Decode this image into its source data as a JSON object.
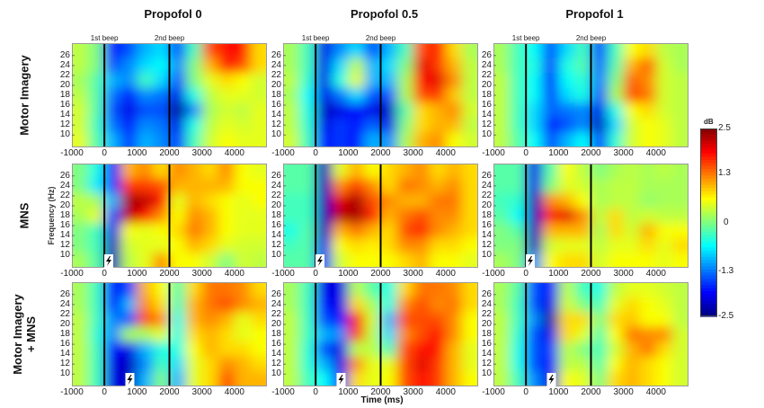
{
  "chart_data": {
    "type": "heatmap",
    "xlabel": "Time (ms)",
    "ylabel": "Frequency (Hz)",
    "x_ticks": [
      "-1000",
      "0",
      "1000",
      "2000",
      "3000",
      "4000"
    ],
    "y_ticks": [
      "26",
      "24",
      "22",
      "20",
      "18",
      "16",
      "14",
      "12",
      "10"
    ],
    "xlim": [
      -1000,
      5000
    ],
    "ylim": [
      7.5,
      28.5
    ],
    "event_labels": {
      "first": "1st beep",
      "second": "2nd beep"
    },
    "event_times": [
      0,
      2000
    ],
    "time_bin_centers": [
      -750,
      -250,
      250,
      750,
      1250,
      1750,
      2250,
      2750,
      3250,
      3750,
      4250,
      4750
    ],
    "freq_bin_centers": [
      27,
      24,
      21,
      18,
      15,
      12,
      9
    ],
    "columns": [
      "Propofol 0",
      "Propofol 0.5",
      "Propofol 1"
    ],
    "rows": [
      {
        "label": [
          "Motor Imagery"
        ],
        "stim_time": null
      },
      {
        "label": [
          "MNS"
        ],
        "stim_time": 50
      },
      {
        "label": [
          "Motor Imagery",
          "+ MNS"
        ],
        "stim_time": 700
      }
    ],
    "colorbar": {
      "label": "dB",
      "range": [
        -2.5,
        2.5
      ],
      "ticks": [
        "2.5",
        "1.3",
        "0",
        "-1.3",
        "-2.5"
      ],
      "tick_values": [
        2.5,
        1.3,
        0,
        -1.3,
        -2.5
      ],
      "colormap": "jet"
    },
    "panels": [
      [
        [
          [
            0.3,
            0,
            -1.8,
            -1.5,
            -1,
            -0.8,
            -1.5,
            -0.3,
            1.5,
            1.8,
            1.8,
            0.8
          ],
          [
            0.3,
            0,
            -1.5,
            -1.2,
            -0.8,
            -0.6,
            -1.2,
            0,
            1,
            1.8,
            1.5,
            0.8
          ],
          [
            0.2,
            -0.2,
            -1,
            -1.2,
            -0.3,
            -0.8,
            -1.5,
            0,
            0.5,
            0.8,
            0.6,
            0.4
          ],
          [
            0.3,
            -0.2,
            -1.3,
            -1.8,
            -1.2,
            -1.3,
            -2,
            -0.5,
            0.3,
            0.5,
            0.5,
            0.4
          ],
          [
            0.4,
            -0.2,
            -1.5,
            -2,
            -1.5,
            -1.5,
            -2.4,
            -1.2,
            0.2,
            0.4,
            0.3,
            0.5
          ],
          [
            0.4,
            -0.3,
            -1.3,
            -1.8,
            -1.2,
            -1.3,
            -2,
            -0.5,
            0.3,
            0.5,
            0.4,
            0.5
          ],
          [
            0.5,
            -0.2,
            -1,
            -1.6,
            -1,
            -1.2,
            -1.6,
            -0.3,
            0.4,
            0.6,
            0.5,
            0.5
          ]
        ],
        [
          [
            0.2,
            -0.3,
            -2,
            -1.2,
            -0.8,
            -1.5,
            -1,
            -0.3,
            1.5,
            1.8,
            0.8,
            0.2
          ],
          [
            0.2,
            -0.3,
            -2,
            -0.8,
            0.3,
            -1,
            -0.8,
            0,
            2,
            1.6,
            1,
            0.3
          ],
          [
            0.3,
            -0.4,
            -2,
            -0.5,
            0.5,
            -1,
            -1,
            0.2,
            1.8,
            2,
            1.2,
            0.3
          ],
          [
            0.2,
            -0.6,
            -2,
            -1.3,
            -0.8,
            -1.5,
            -1.5,
            0.2,
            1.5,
            1.6,
            0.9,
            0.3
          ],
          [
            0.3,
            -0.5,
            -2.2,
            -2,
            -1.8,
            -2,
            -2.2,
            -0.2,
            0.8,
            1,
            1.2,
            0.4
          ],
          [
            0.3,
            -0.4,
            -2,
            -1.6,
            -1.8,
            -1.4,
            -2,
            0,
            0.8,
            1,
            1,
            0.3
          ],
          [
            0.4,
            -0.3,
            -1.8,
            -1.6,
            -1.8,
            -1,
            -1.2,
            0.2,
            1,
            1.2,
            0.6,
            0.4
          ]
        ],
        [
          [
            0.2,
            -0.3,
            -0.6,
            -1.5,
            -0.8,
            -0.3,
            -1.6,
            -0.3,
            0.6,
            0.8,
            0.3,
            0.2
          ],
          [
            0.2,
            -0.3,
            -0.5,
            -1.6,
            -0.5,
            -0.2,
            -1.4,
            -0.2,
            1,
            1.4,
            0.4,
            0.2
          ],
          [
            0.3,
            -0.3,
            -0.6,
            -1.8,
            -0.6,
            -0.4,
            -1.3,
            0,
            1.4,
            1.2,
            0.4,
            0.3
          ],
          [
            0.3,
            -0.3,
            -0.6,
            -1.6,
            -0.8,
            -0.5,
            -1.5,
            0.2,
            1.5,
            1.3,
            0.4,
            0.3
          ],
          [
            0.3,
            -0.3,
            -0.8,
            -1.4,
            -1.3,
            -1.2,
            -2,
            -0.5,
            0.6,
            0.8,
            0.4,
            0.3
          ],
          [
            0.3,
            -0.3,
            -0.8,
            -1.8,
            -1.5,
            -1.2,
            -2.2,
            -0.8,
            0.4,
            0.6,
            0.5,
            0.3
          ],
          [
            0.3,
            -0.2,
            -0.6,
            -1.5,
            -1,
            -0.6,
            -1.6,
            -0.4,
            0.4,
            0.6,
            0.5,
            0.3
          ]
        ]
      ],
      [
        [
          [
            0,
            -0.5,
            -1.8,
            1,
            1.2,
            0.8,
            1.2,
            1,
            0.8,
            1.2,
            0.6,
            0.5
          ],
          [
            0,
            -0.7,
            -1.6,
            1.6,
            1.6,
            1.5,
            1,
            1,
            1,
            1,
            0.6,
            0.6
          ],
          [
            0.3,
            0.2,
            -1,
            2.3,
            2.2,
            1.8,
            0.5,
            1,
            0.8,
            0.6,
            0.5,
            0.6
          ],
          [
            0.2,
            0.5,
            -1.5,
            2.2,
            1.8,
            1.2,
            0.6,
            1.2,
            1,
            0.6,
            0.5,
            0.5
          ],
          [
            0,
            -0.3,
            -2,
            0.6,
            0.5,
            0.6,
            0.8,
            1.3,
            1,
            0.6,
            0.5,
            0.5
          ],
          [
            0,
            -0.3,
            -2.2,
            0.4,
            0.5,
            0.5,
            0.6,
            1,
            0.8,
            0.5,
            0.4,
            0.4
          ],
          [
            0.2,
            -0.2,
            -2.2,
            0.3,
            0.5,
            1.2,
            0.6,
            0.6,
            0.4,
            0,
            0.4,
            0.3
          ]
        ],
        [
          [
            -0.2,
            -0.2,
            -2.2,
            0.5,
            1,
            0.6,
            0.8,
            1,
            1.2,
            0.8,
            1,
            0.8
          ],
          [
            -0.2,
            -0.2,
            -2.2,
            1.2,
            1.6,
            1.2,
            0.8,
            1.3,
            1.2,
            1,
            1.2,
            0.8
          ],
          [
            -0.3,
            -0.3,
            -2.2,
            2,
            2.3,
            1.5,
            1.2,
            1,
            1,
            1.3,
            1.3,
            0.8
          ],
          [
            -0.3,
            -0.3,
            -2.2,
            2.2,
            2.3,
            1.7,
            1,
            1.3,
            1.5,
            1.2,
            1.2,
            0.8
          ],
          [
            -0.5,
            -0.2,
            -2.2,
            1,
            1.3,
            1,
            0.8,
            1.5,
            1.7,
            1.2,
            1,
            0.8
          ],
          [
            -0.3,
            -0.2,
            -2,
            0.6,
            0.8,
            0.7,
            0.8,
            1.2,
            1.2,
            0.8,
            0.8,
            0.6
          ],
          [
            -0.2,
            -0.2,
            -1.6,
            0.4,
            0.6,
            0.6,
            0.6,
            0.8,
            1,
            0.6,
            0.6,
            0.5
          ]
        ],
        [
          [
            -0.2,
            -0.2,
            -2,
            -0.2,
            0.6,
            0.3,
            0,
            0.2,
            0.3,
            0.2,
            0.3,
            0.2
          ],
          [
            -0.2,
            -0.2,
            -2,
            0,
            0.5,
            0.4,
            0.2,
            0.3,
            0.3,
            0.2,
            0.2,
            0.2
          ],
          [
            -0.3,
            -0.4,
            -2.2,
            1.2,
            1,
            0.6,
            0.2,
            0.3,
            0.3,
            0.1,
            0.2,
            0.2
          ],
          [
            -0.2,
            -0.6,
            -2.2,
            1.8,
            2,
            1.2,
            0.3,
            0.8,
            0.3,
            0.4,
            0.3,
            0.3
          ],
          [
            0,
            -0.2,
            -2.2,
            1,
            1,
            1,
            0.2,
            0.8,
            0.4,
            1,
            0.6,
            0.6
          ],
          [
            0,
            0,
            -2.2,
            0.4,
            0.5,
            0.5,
            0.3,
            0.5,
            0.5,
            0.8,
            0.5,
            0.8
          ],
          [
            0.2,
            0,
            -1.2,
            0.6,
            0.8,
            0.8,
            0.4,
            0.6,
            0.6,
            0.6,
            0.5,
            0.6
          ]
        ]
      ],
      [
        [
          [
            0.2,
            -0.3,
            -1.8,
            -1.5,
            1,
            0.6,
            -0.2,
            0.8,
            1.3,
            1.3,
            1.2,
            0.8
          ],
          [
            0.2,
            -0.3,
            -1.8,
            -1,
            1.2,
            0.8,
            -0.3,
            1,
            1.3,
            1.5,
            1.2,
            1
          ],
          [
            0.3,
            -0.3,
            -1.2,
            -1.5,
            1.5,
            1.2,
            -0.5,
            1,
            1.2,
            1,
            0.5,
            0.8
          ],
          [
            0.3,
            -0.4,
            -1.2,
            0.2,
            0.2,
            0.5,
            -0.5,
            0.8,
            1,
            0.8,
            0.5,
            0.6
          ],
          [
            0.3,
            -0.3,
            -1.8,
            -2,
            -1,
            -0.5,
            -0.5,
            0.6,
            1,
            0.8,
            0.8,
            0.6
          ],
          [
            0.3,
            -0.3,
            -2,
            -2.2,
            -1.2,
            -0.3,
            -0.8,
            0.5,
            0.8,
            1.2,
            1,
            0.8
          ],
          [
            0.3,
            -0.3,
            -2,
            -2.2,
            -1,
            0,
            -1,
            0.5,
            0.8,
            1.5,
            1,
            1
          ]
        ],
        [
          [
            0.2,
            -0.3,
            -2,
            -2,
            0.3,
            -0.2,
            -0.5,
            0.8,
            1.3,
            1.3,
            1.2,
            0.8
          ],
          [
            0.2,
            -0.3,
            -1.8,
            -2,
            0.8,
            0.2,
            -0.5,
            1.2,
            1.5,
            1.2,
            1.3,
            0.8
          ],
          [
            0.3,
            -0.3,
            -1.5,
            -1.8,
            1.8,
            0.4,
            -1,
            1.5,
            1.5,
            1.5,
            1.2,
            0.6
          ],
          [
            0.3,
            -0.3,
            -1,
            -1.2,
            1.6,
            0.3,
            -0.8,
            1.2,
            1.5,
            1.8,
            1.2,
            0.6
          ],
          [
            0.3,
            -0.4,
            -1.5,
            -2,
            0.3,
            0.3,
            -0.3,
            1.5,
            1.8,
            1.8,
            1,
            0.5
          ],
          [
            0.3,
            -0.4,
            -1,
            -2,
            1.2,
            0.5,
            0.5,
            1.5,
            2,
            1.6,
            1,
            0.5
          ],
          [
            0.3,
            -0.3,
            -0.6,
            -1.8,
            0.8,
            0.5,
            0.6,
            1.5,
            1.8,
            1.6,
            1,
            0.6
          ]
        ],
        [
          [
            0.2,
            -0.2,
            -1.5,
            -1.8,
            0.3,
            -0.3,
            -0.5,
            0.3,
            0.5,
            0.5,
            0.4,
            0.3
          ],
          [
            0.2,
            -0.3,
            -1.5,
            -2,
            0.4,
            0,
            -0.3,
            0.5,
            0.8,
            0.6,
            0.5,
            0.3
          ],
          [
            0.3,
            -0.3,
            -1.2,
            -2.3,
            0.8,
            0.8,
            0,
            0.8,
            0.9,
            0.6,
            0.6,
            0.3
          ],
          [
            0.3,
            -0.4,
            -1.5,
            -2,
            0.8,
            0.5,
            -0.2,
            0.6,
            1.3,
            1.2,
            1.2,
            0.4
          ],
          [
            0.3,
            -0.5,
            -1.5,
            -1.6,
            0.3,
            0,
            -0.3,
            0.4,
            1,
            1.3,
            0.8,
            0.4
          ],
          [
            0.3,
            -0.5,
            -1.5,
            -1.8,
            0.3,
            0.3,
            -0.2,
            0.6,
            1,
            0.8,
            0.6,
            0.4
          ],
          [
            0.3,
            -0.3,
            -1.2,
            -2,
            0.6,
            0.5,
            0,
            0.8,
            1,
            0.8,
            0.6,
            0.4
          ]
        ]
      ]
    ]
  }
}
